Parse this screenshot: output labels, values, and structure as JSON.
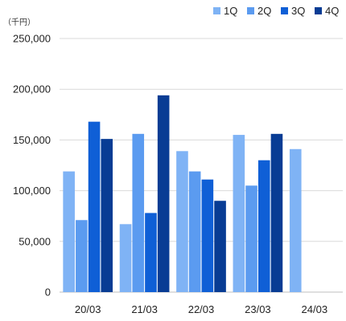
{
  "chart_data": {
    "type": "bar",
    "unit_label": "（千円）",
    "categories": [
      "20/03",
      "21/03",
      "22/03",
      "23/03",
      "24/03"
    ],
    "series": [
      {
        "name": "1Q",
        "color": "#7fb3f5",
        "values": [
          119000,
          67000,
          139000,
          155000,
          141000
        ]
      },
      {
        "name": "2Q",
        "color": "#5b9bf0",
        "values": [
          71000,
          156000,
          119000,
          105000,
          null
        ]
      },
      {
        "name": "3Q",
        "color": "#0f5fd6",
        "values": [
          168000,
          78000,
          111000,
          130000,
          null
        ]
      },
      {
        "name": "4Q",
        "color": "#083c94",
        "values": [
          151000,
          194000,
          90000,
          156000,
          null
        ]
      }
    ],
    "y_ticks": [
      0,
      50000,
      100000,
      150000,
      200000,
      250000
    ],
    "y_tick_labels": [
      "0",
      "50,000",
      "100,000",
      "150,000",
      "200,000",
      "250,000"
    ],
    "ylim": [
      0,
      250000
    ],
    "grid": "horizontal",
    "legend_position": "top-right"
  }
}
